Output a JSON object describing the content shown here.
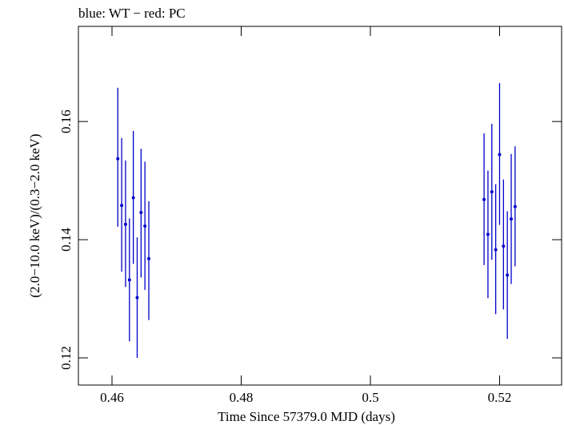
{
  "chart_data": {
    "type": "scatter",
    "title": "blue: WT − red: PC",
    "xlabel": "Time Since 57379.0 MJD (days)",
    "ylabel": "(2.0−10.0 keV)/(0.3−2.0 keV)",
    "xlim": [
      0.4548,
      0.5296
    ],
    "ylim": [
      0.1154,
      0.1761
    ],
    "x_ticks": [
      0.46,
      0.48,
      0.5,
      0.52
    ],
    "x_tick_labels": [
      "0.46",
      "0.48",
      "0.5",
      "0.52"
    ],
    "y_ticks": [
      0.12,
      0.14,
      0.16
    ],
    "y_tick_labels": [
      "0.12",
      "0.14",
      "0.16"
    ],
    "grid": false,
    "series": [
      {
        "name": "WT",
        "color": "#0000cc",
        "points": [
          {
            "x": 0.4609,
            "y": 0.1537,
            "ylo": 0.1422,
            "yhi": 0.1657
          },
          {
            "x": 0.4615,
            "y": 0.1458,
            "ylo": 0.1346,
            "yhi": 0.1572
          },
          {
            "x": 0.4621,
            "y": 0.1426,
            "ylo": 0.132,
            "yhi": 0.1534
          },
          {
            "x": 0.4627,
            "y": 0.1332,
            "ylo": 0.1228,
            "yhi": 0.1436
          },
          {
            "x": 0.4633,
            "y": 0.1471,
            "ylo": 0.1359,
            "yhi": 0.1584
          },
          {
            "x": 0.4639,
            "y": 0.1302,
            "ylo": 0.12,
            "yhi": 0.1404
          },
          {
            "x": 0.4645,
            "y": 0.1446,
            "ylo": 0.1336,
            "yhi": 0.1554
          },
          {
            "x": 0.4651,
            "y": 0.1423,
            "ylo": 0.1315,
            "yhi": 0.1532
          },
          {
            "x": 0.4657,
            "y": 0.1368,
            "ylo": 0.1264,
            "yhi": 0.1465
          }
        ]
      },
      {
        "name": "WT",
        "color": "#0000cc",
        "points": [
          {
            "x": 0.5176,
            "y": 0.1468,
            "ylo": 0.1357,
            "yhi": 0.158
          },
          {
            "x": 0.5182,
            "y": 0.1409,
            "ylo": 0.1301,
            "yhi": 0.1517
          },
          {
            "x": 0.5188,
            "y": 0.1481,
            "ylo": 0.1366,
            "yhi": 0.1596
          },
          {
            "x": 0.5194,
            "y": 0.1383,
            "ylo": 0.1274,
            "yhi": 0.1494
          },
          {
            "x": 0.52,
            "y": 0.1544,
            "ylo": 0.1425,
            "yhi": 0.1665
          },
          {
            "x": 0.5206,
            "y": 0.1389,
            "ylo": 0.1282,
            "yhi": 0.1502
          },
          {
            "x": 0.5212,
            "y": 0.134,
            "ylo": 0.1232,
            "yhi": 0.1448
          },
          {
            "x": 0.5218,
            "y": 0.1435,
            "ylo": 0.1325,
            "yhi": 0.1545
          },
          {
            "x": 0.5224,
            "y": 0.1456,
            "ylo": 0.1355,
            "yhi": 0.1558
          }
        ]
      }
    ]
  }
}
